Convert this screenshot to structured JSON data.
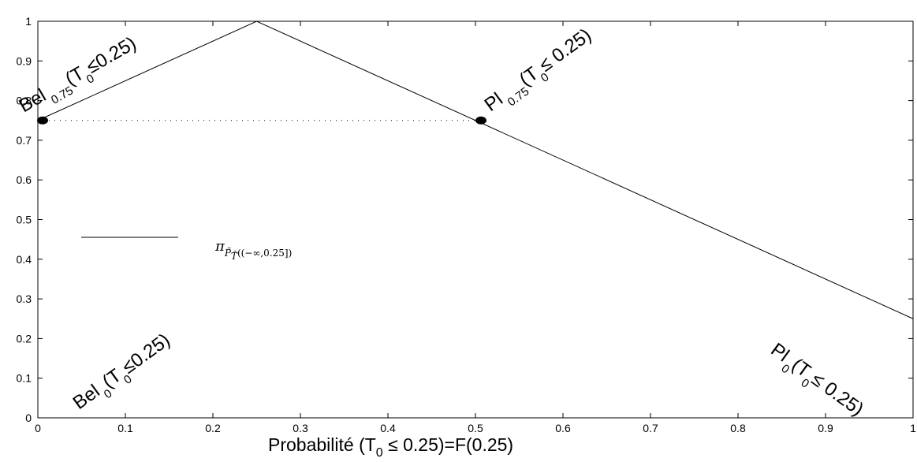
{
  "chart_data": {
    "type": "line",
    "series": [
      {
        "name": "π_{P̃_T̃((−∞,0.25])}",
        "x": [
          0,
          0.25,
          1
        ],
        "y": [
          0.75,
          1,
          0.25
        ]
      }
    ],
    "dotted_line": {
      "x": [
        0,
        0.5
      ],
      "y": [
        0.75,
        0.75
      ]
    },
    "markers": [
      {
        "x": 0,
        "y": 0.75
      },
      {
        "x": 0.5,
        "y": 0.75
      }
    ],
    "xlim": [
      0,
      1
    ],
    "ylim": [
      0,
      1
    ],
    "xticks": [
      "0",
      "0.1",
      "0.2",
      "0.3",
      "0.4",
      "0.5",
      "0.6",
      "0.7",
      "0.8",
      "0.9",
      "1"
    ],
    "yticks": [
      "0",
      "0.1",
      "0.2",
      "0.3",
      "0.4",
      "0.5",
      "0.6",
      "0.7",
      "0.8",
      "0.9",
      "1"
    ],
    "xlabel": "Probabilité (T",
    "xlabel_sub": "0",
    "xlabel_rest": " ≤ 0.25)=F(0.25)",
    "legend": {
      "main": "π",
      "sub1": "P̃",
      "sub2": "T̃",
      "sub_rest": "((−∞,0.25])"
    },
    "annotations": [
      {
        "id": "bel075",
        "x": 0,
        "y": 0.75,
        "p1": "Bel",
        "s1": "0.75",
        "p2": "(T",
        "s2": "0",
        "p3": "≤0.25)"
      },
      {
        "id": "pl075",
        "x": 0.5,
        "y": 0.75,
        "p1": "Pl",
        "s1": "0.75",
        "p2": "(T",
        "s2": "0",
        "p3": "≤ 0.25)"
      },
      {
        "id": "bel0",
        "x": 0.05,
        "y": 0.0,
        "p1": "Bel",
        "s1": "0",
        "p2": "(T",
        "s2": "0",
        "p3": "≤0.25)"
      },
      {
        "id": "pl0",
        "x": 0.9,
        "y": 0.0,
        "p1": "Pl",
        "s1": "0",
        "p2": "(T",
        "s2": "0",
        "p3": "≤ 0.25)"
      }
    ]
  }
}
